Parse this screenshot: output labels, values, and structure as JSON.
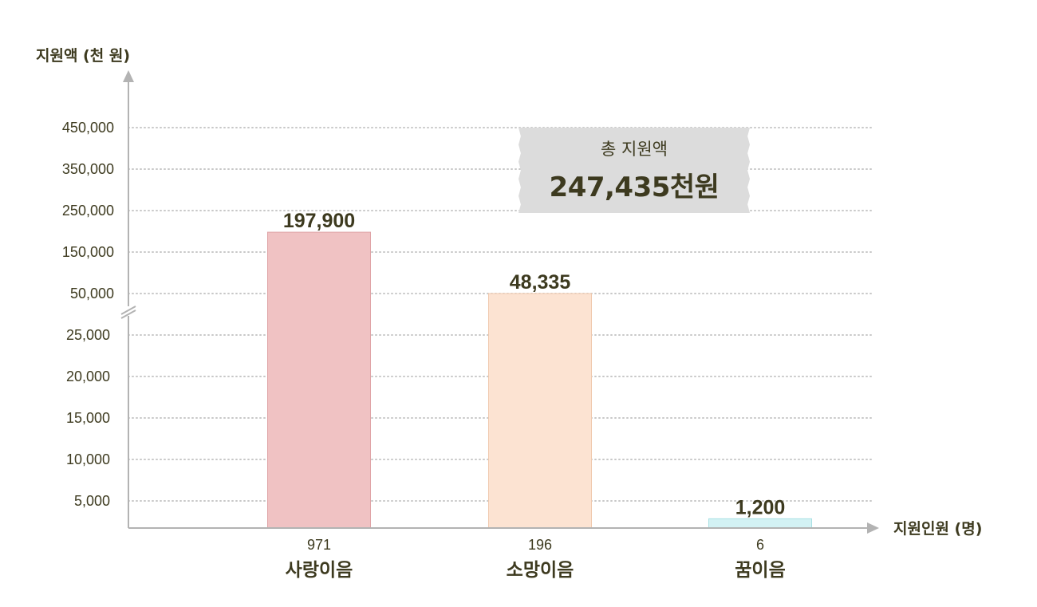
{
  "chart_data": {
    "type": "bar",
    "y_axis_title": "지원액 (천 원)",
    "x_axis_title": "지원인원 (명)",
    "y_ticks_upper": [
      "450,000",
      "350,000",
      "250,000",
      "150,000",
      "50,000"
    ],
    "y_ticks_lower": [
      "25,000",
      "20,000",
      "15,000",
      "10,000",
      "5,000"
    ],
    "y_axis_break": true,
    "grid": "dotted-horizontal",
    "categories": [
      "사랑이음",
      "소망이음",
      "꿈이음"
    ],
    "counts": [
      "971",
      "196",
      "6"
    ],
    "values": [
      197900,
      48335,
      1200
    ],
    "value_labels": [
      "197,900",
      "48,335",
      "1,200"
    ],
    "colors": [
      "#f0c2c3",
      "#fce3d2",
      "#d3f2f4"
    ],
    "border_colors": [
      "#dfa3a6",
      "#f0c9ae",
      "#a9e0e4"
    ]
  },
  "total": {
    "label": "총 지원액",
    "value": "247,435천원"
  }
}
